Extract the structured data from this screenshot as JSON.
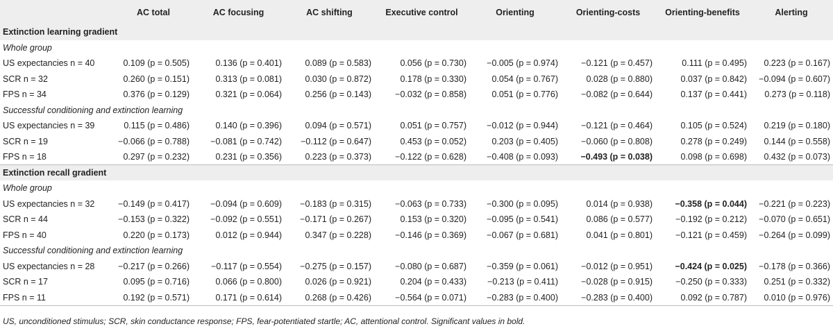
{
  "table": {
    "headers": [
      "",
      "AC total",
      "AC focusing",
      "AC shifting",
      "Executive control",
      "Orienting",
      "Orienting-costs",
      "Orienting-benefits",
      "Alerting"
    ],
    "rows": [
      {
        "type": "section",
        "label": "Extinction learning gradient"
      },
      {
        "type": "subgroup",
        "label": "Whole group"
      },
      {
        "type": "data",
        "label": "US expectancies n = 40",
        "values": [
          "0.109 (p = 0.505)",
          "0.136 (p = 0.401)",
          "0.089 (p = 0.583)",
          "0.056 (p = 0.730)",
          "−0.005 (p = 0.974)",
          "−0.121 (p = 0.457)",
          "0.111 (p = 0.495)",
          "0.223 (p = 0.167)"
        ],
        "bold": []
      },
      {
        "type": "data",
        "label": "SCR n = 32",
        "values": [
          "0.260 (p = 0.151)",
          "0.313 (p = 0.081)",
          "0.030 (p = 0.872)",
          "0.178 (p = 0.330)",
          "0.054 (p = 0.767)",
          "0.028 (p = 0.880)",
          "0.037 (p = 0.842)",
          "−0.094 (p = 0.607)"
        ],
        "bold": []
      },
      {
        "type": "data",
        "label": "FPS n = 34",
        "values": [
          "0.376 (p = 0.129)",
          "0.321 (p = 0.064)",
          "0.256 (p = 0.143)",
          "−0.032 (p = 0.858)",
          "0.051 (p = 0.776)",
          "−0.082 (p = 0.644)",
          "0.137 (p = 0.441)",
          "0.273 (p = 0.118)"
        ],
        "bold": []
      },
      {
        "type": "subgroup",
        "label": "Successful conditioning and extinction learning"
      },
      {
        "type": "data",
        "label": "US expectancies n = 39",
        "values": [
          "0.115 (p = 0.486)",
          "0.140 (p = 0.396)",
          "0.094 (p = 0.571)",
          "0.051 (p = 0.757)",
          "−0.012 (p = 0.944)",
          "−0.121 (p = 0.464)",
          "0.105 (p = 0.524)",
          "0.219 (p = 0.180)"
        ],
        "bold": []
      },
      {
        "type": "data",
        "label": "SCR n = 19",
        "values": [
          "−0.066 (p = 0.788)",
          "−0.081 (p = 0.742)",
          "−0.112 (p = 0.647)",
          "0.453 (p = 0.052)",
          "0.203 (p = 0.405)",
          "−0.060 (p = 0.808)",
          "0.278 (p = 0.249)",
          "0.144 (p = 0.558)"
        ],
        "bold": []
      },
      {
        "type": "data",
        "label": "FPS n = 18",
        "values": [
          "0.297 (p = 0.232)",
          "0.231 (p = 0.356)",
          "0.223 (p = 0.373)",
          "−0.122 (p = 0.628)",
          "−0.408 (p = 0.093)",
          "−0.493 (p = 0.038)",
          "0.098 (p = 0.698)",
          "0.432 (p = 0.073)"
        ],
        "bold": [
          5
        ]
      },
      {
        "type": "section",
        "label": "Extinction recall gradient"
      },
      {
        "type": "subgroup",
        "label": "Whole group"
      },
      {
        "type": "data",
        "label": "US expectancies n = 32",
        "values": [
          "−0.149 (p = 0.417)",
          "−0.094 (p = 0.609)",
          "−0.183 (p = 0.315)",
          "−0.063 (p = 0.733)",
          "−0.300 (p = 0.095)",
          "0.014 (p = 0.938)",
          "−0.358 (p = 0.044)",
          "−0.221 (p = 0.223)"
        ],
        "bold": [
          6
        ]
      },
      {
        "type": "data",
        "label": "SCR n = 44",
        "values": [
          "−0.153 (p = 0.322)",
          "−0.092 (p = 0.551)",
          "−0.171 (p = 0.267)",
          "0.153 (p = 0.320)",
          "−0.095 (p = 0.541)",
          "0.086 (p = 0.577)",
          "−0.192 (p = 0.212)",
          "−0.070 (p = 0.651)"
        ],
        "bold": []
      },
      {
        "type": "data",
        "label": "FPS n = 40",
        "values": [
          "0.220 (p = 0.173)",
          "0.012 (p = 0.944)",
          "0.347 (p = 0.228)",
          "−0.146 (p = 0.369)",
          "−0.067 (p = 0.681)",
          "0.041 (p = 0.801)",
          "−0.121 (p = 0.459)",
          "−0.264 (p = 0.099)"
        ],
        "bold": []
      },
      {
        "type": "subgroup",
        "label": "Successful conditioning and extinction learning"
      },
      {
        "type": "data",
        "label": "US expectancies n = 28",
        "values": [
          "−0.217 (p = 0.266)",
          "−0.117 (p = 0.554)",
          "−0.275 (p = 0.157)",
          "−0.080 (p = 0.687)",
          "−0.359 (p = 0.061)",
          "−0.012 (p = 0.951)",
          "−0.424 (p = 0.025)",
          "−0.178 (p = 0.366)"
        ],
        "bold": [
          6
        ]
      },
      {
        "type": "data",
        "label": "SCR n = 17",
        "values": [
          "0.095 (p = 0.716)",
          "0.066 (p = 0.800)",
          "0.026 (p = 0.921)",
          "0.204 (p = 0.433)",
          "−0.213 (p = 0.411)",
          "−0.028 (p = 0.915)",
          "−0.250 (p = 0.333)",
          "0.251 (p = 0.332)"
        ],
        "bold": []
      },
      {
        "type": "data",
        "label": "FPS n = 11",
        "values": [
          "0.192 (p = 0.571)",
          "0.171 (p = 0.614)",
          "0.268 (p = 0.426)",
          "−0.564 (p = 0.071)",
          "−0.283 (p = 0.400)",
          "−0.283 (p = 0.400)",
          "0.092 (p = 0.787)",
          "0.010 (p = 0.976)"
        ],
        "bold": []
      }
    ]
  },
  "footnote": "US, unconditioned stimulus; SCR, skin conductance response; FPS, fear-potentiated startle; AC, attentional control. Significant values in bold."
}
